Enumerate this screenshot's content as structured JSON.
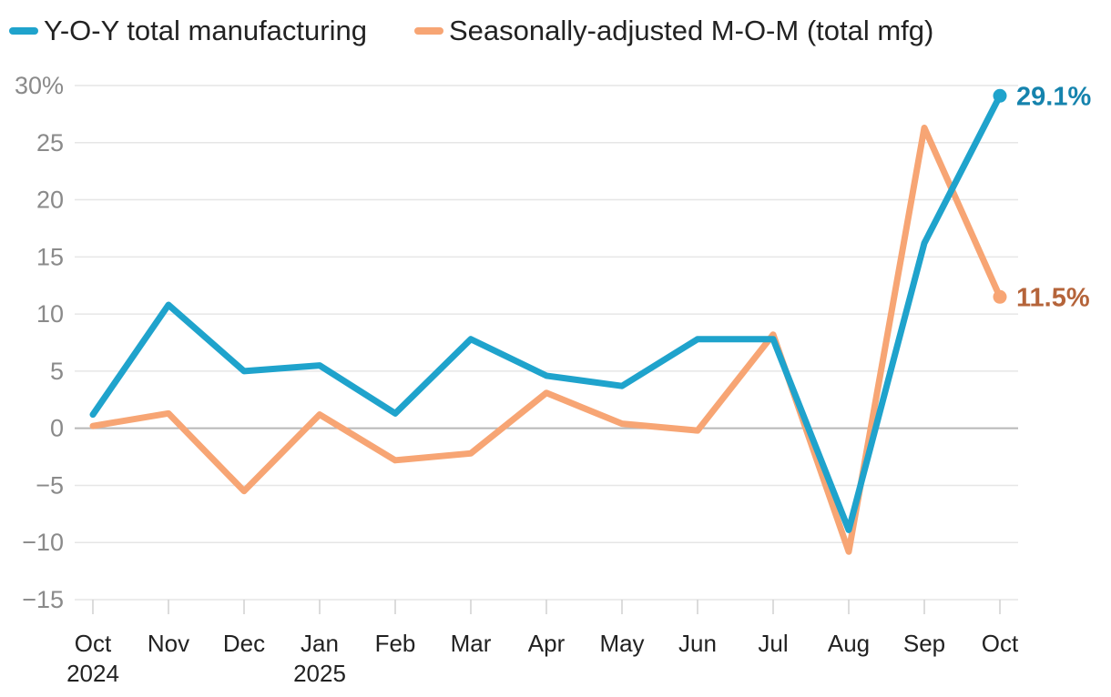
{
  "chart_data": {
    "type": "line",
    "title": "",
    "xlabel": "",
    "ylabel": "",
    "categories": [
      "Oct",
      "Nov",
      "Dec",
      "Jan",
      "Feb",
      "Mar",
      "Apr",
      "May",
      "Jun",
      "Jul",
      "Aug",
      "Sep",
      "Oct"
    ],
    "year_labels": [
      "2024",
      "",
      "",
      "2025",
      "",
      "",
      "",
      "",
      "",
      "",
      "",
      "",
      ""
    ],
    "ylim": [
      -15,
      30
    ],
    "yticks": [
      -15,
      -10,
      -5,
      0,
      5,
      10,
      15,
      20,
      25,
      30
    ],
    "ytick_labels": [
      "−15",
      "−10",
      "−5",
      "0",
      "5",
      "10",
      "15",
      "20",
      "25",
      "30%"
    ],
    "grid": true,
    "legend_position": "top-left",
    "series": [
      {
        "name": "Y-O-Y total manufacturing",
        "color": "#1fa3cc",
        "label_color": "#1583ad",
        "values": [
          1.2,
          10.8,
          5.0,
          5.5,
          1.3,
          7.8,
          4.6,
          3.7,
          7.8,
          7.8,
          -8.9,
          16.2,
          29.1
        ],
        "end_label": "29.1%"
      },
      {
        "name": "Seasonally-adjusted M-O-M (total mfg)",
        "color": "#f7a574",
        "label_color": "#b5643a",
        "values": [
          0.2,
          1.3,
          -5.5,
          1.2,
          -2.8,
          -2.2,
          3.1,
          0.4,
          -0.2,
          8.2,
          -10.8,
          26.3,
          11.5
        ],
        "end_label": "11.5%"
      }
    ]
  }
}
